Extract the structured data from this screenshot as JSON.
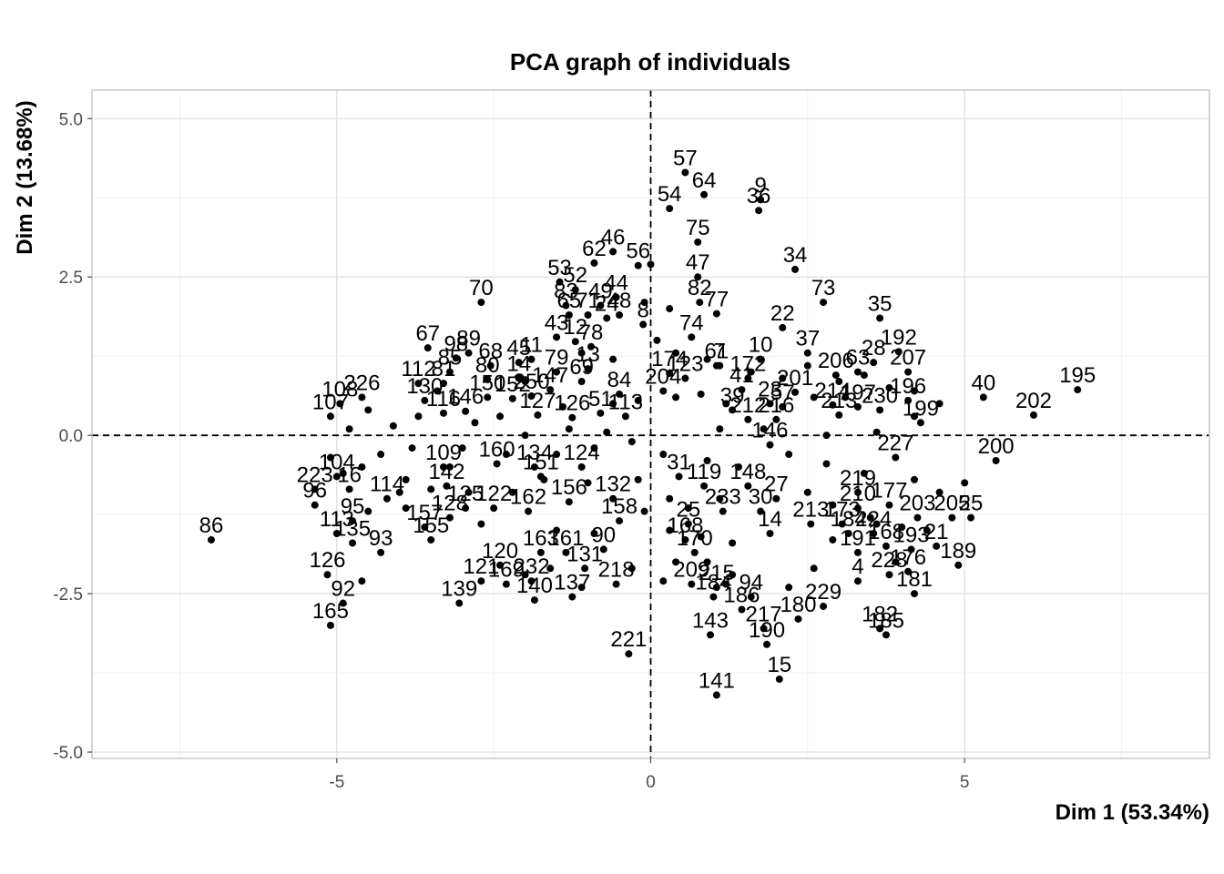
{
  "chart_data": {
    "type": "scatter",
    "title": "PCA graph of individuals",
    "xlabel": "Dim 1 (53.34%)",
    "ylabel": "Dim 2 (13.68%)",
    "xlim": [
      -8.9,
      8.9
    ],
    "ylim": [
      -5.1,
      5.45
    ],
    "xticks": [
      -5,
      0,
      5
    ],
    "xtick_labels": [
      "-5",
      "0",
      "5"
    ],
    "yticks": [
      -5,
      -2.5,
      0,
      2.5,
      5
    ],
    "ytick_labels": [
      "-5.0",
      "-2.5",
      "0.0",
      "2.5",
      "5.0"
    ],
    "grid": true,
    "reference_lines": {
      "x": 0,
      "y": 0,
      "style": "dashed"
    },
    "points": [
      {
        "label": "57",
        "x": 0.55,
        "y": 4.15
      },
      {
        "label": "64",
        "x": 0.85,
        "y": 3.8
      },
      {
        "label": "54",
        "x": 0.3,
        "y": 3.58
      },
      {
        "label": "9",
        "x": 1.75,
        "y": 3.72
      },
      {
        "label": "36",
        "x": 1.72,
        "y": 3.55
      },
      {
        "label": "75",
        "x": 0.75,
        "y": 3.05
      },
      {
        "label": "46",
        "x": -0.6,
        "y": 2.9
      },
      {
        "label": "62",
        "x": -0.9,
        "y": 2.72
      },
      {
        "label": "56",
        "x": -0.2,
        "y": 2.68
      },
      {
        "label": "47",
        "x": 0.75,
        "y": 2.5
      },
      {
        "label": "34",
        "x": 2.3,
        "y": 2.62
      },
      {
        "label": "44",
        "x": -0.55,
        "y": 2.18
      },
      {
        "label": "53",
        "x": -1.45,
        "y": 2.42
      },
      {
        "label": "52",
        "x": -1.2,
        "y": 2.3
      },
      {
        "label": "83",
        "x": -1.35,
        "y": 2.05
      },
      {
        "label": "49",
        "x": -0.8,
        "y": 2.05
      },
      {
        "label": "82",
        "x": 0.78,
        "y": 2.1
      },
      {
        "label": "73",
        "x": 2.75,
        "y": 2.1
      },
      {
        "label": "70",
        "x": -2.7,
        "y": 2.1
      },
      {
        "label": "77",
        "x": 1.05,
        "y": 1.92
      },
      {
        "label": "65",
        "x": -1.3,
        "y": 1.9
      },
      {
        "label": "71",
        "x": -1.0,
        "y": 1.9
      },
      {
        "label": "24",
        "x": -0.7,
        "y": 1.85
      },
      {
        "label": "48",
        "x": -0.5,
        "y": 1.9
      },
      {
        "label": "8",
        "x": -0.12,
        "y": 1.75
      },
      {
        "label": "22",
        "x": 2.1,
        "y": 1.7
      },
      {
        "label": "35",
        "x": 3.65,
        "y": 1.85
      },
      {
        "label": "74",
        "x": 0.65,
        "y": 1.55
      },
      {
        "label": "43",
        "x": -1.5,
        "y": 1.55
      },
      {
        "label": "12",
        "x": -1.2,
        "y": 1.48
      },
      {
        "label": "78",
        "x": -0.95,
        "y": 1.4
      },
      {
        "label": "67",
        "x": -3.55,
        "y": 1.38
      },
      {
        "label": "98",
        "x": -3.1,
        "y": 1.22
      },
      {
        "label": "89",
        "x": -2.9,
        "y": 1.3
      },
      {
        "label": "37",
        "x": 2.5,
        "y": 1.3
      },
      {
        "label": "192",
        "x": 3.95,
        "y": 1.32
      },
      {
        "label": "68",
        "x": -2.55,
        "y": 1.1
      },
      {
        "label": "45",
        "x": -2.1,
        "y": 1.15
      },
      {
        "label": "11",
        "x": -1.9,
        "y": 1.2
      },
      {
        "label": "10",
        "x": 1.75,
        "y": 1.2
      },
      {
        "label": "61",
        "x": 1.05,
        "y": 1.1
      },
      {
        "label": "7",
        "x": 1.1,
        "y": 1.1
      },
      {
        "label": "28",
        "x": 3.55,
        "y": 1.15
      },
      {
        "label": "63",
        "x": 3.3,
        "y": 1.0
      },
      {
        "label": "207",
        "x": 4.1,
        "y": 1.0
      },
      {
        "label": "206",
        "x": 2.95,
        "y": 0.95
      },
      {
        "label": "85",
        "x": -3.2,
        "y": 1.0
      },
      {
        "label": "79",
        "x": -1.5,
        "y": 1.0
      },
      {
        "label": "13",
        "x": -1.0,
        "y": 1.05
      },
      {
        "label": "172",
        "x": 1.55,
        "y": 0.9
      },
      {
        "label": "174",
        "x": 0.3,
        "y": 0.98
      },
      {
        "label": "80",
        "x": -2.6,
        "y": 0.88
      },
      {
        "label": "14",
        "x": -2.1,
        "y": 0.9
      },
      {
        "label": "69",
        "x": -1.1,
        "y": 0.85
      },
      {
        "label": "112",
        "x": -3.7,
        "y": 0.82
      },
      {
        "label": "81",
        "x": -3.3,
        "y": 0.82
      },
      {
        "label": "123",
        "x": 0.55,
        "y": 0.9
      },
      {
        "label": "41",
        "x": 1.45,
        "y": 0.72
      },
      {
        "label": "201",
        "x": 2.3,
        "y": 0.68
      },
      {
        "label": "204",
        "x": 0.2,
        "y": 0.7
      },
      {
        "label": "147",
        "x": -1.6,
        "y": 0.72
      },
      {
        "label": "84",
        "x": -0.5,
        "y": 0.65
      },
      {
        "label": "196",
        "x": 4.1,
        "y": 0.55
      },
      {
        "label": "40",
        "x": 5.3,
        "y": 0.6
      },
      {
        "label": "195",
        "x": 6.8,
        "y": 0.72
      },
      {
        "label": "202",
        "x": 6.1,
        "y": 0.32
      },
      {
        "label": "226",
        "x": -4.6,
        "y": 0.6
      },
      {
        "label": "108",
        "x": -4.95,
        "y": 0.5
      },
      {
        "label": "130",
        "x": -3.6,
        "y": 0.55
      },
      {
        "label": "150",
        "x": -2.6,
        "y": 0.6
      },
      {
        "label": "152",
        "x": -2.2,
        "y": 0.58
      },
      {
        "label": "250",
        "x": -1.9,
        "y": 0.62
      },
      {
        "label": "39",
        "x": 1.3,
        "y": 0.4
      },
      {
        "label": "23",
        "x": 1.9,
        "y": 0.5
      },
      {
        "label": "57b",
        "x": 2.1,
        "y": 0.45
      },
      {
        "label": "214",
        "x": 2.9,
        "y": 0.48
      },
      {
        "label": "197",
        "x": 3.3,
        "y": 0.45
      },
      {
        "label": "230",
        "x": 3.65,
        "y": 0.4
      },
      {
        "label": "107",
        "x": -5.1,
        "y": 0.3
      },
      {
        "label": "127",
        "x": -1.8,
        "y": 0.32
      },
      {
        "label": "126b",
        "x": -1.25,
        "y": 0.28
      },
      {
        "label": "51",
        "x": -0.8,
        "y": 0.35
      },
      {
        "label": "113",
        "x": -0.4,
        "y": 0.3
      },
      {
        "label": "116",
        "x": -3.3,
        "y": 0.35
      },
      {
        "label": "146b",
        "x": -2.95,
        "y": 0.38
      },
      {
        "label": "212",
        "x": 1.55,
        "y": 0.25
      },
      {
        "label": "216",
        "x": 2.0,
        "y": 0.25
      },
      {
        "label": "213",
        "x": 3.0,
        "y": 0.32
      },
      {
        "label": "199",
        "x": 4.3,
        "y": 0.2
      },
      {
        "label": "146",
        "x": 1.9,
        "y": -0.15
      },
      {
        "label": "227",
        "x": 3.9,
        "y": -0.35
      },
      {
        "label": "200",
        "x": 5.5,
        "y": -0.4
      },
      {
        "label": "160",
        "x": -2.45,
        "y": -0.45
      },
      {
        "label": "134",
        "x": -1.85,
        "y": -0.5
      },
      {
        "label": "124",
        "x": -1.1,
        "y": -0.5
      },
      {
        "label": "151",
        "x": -1.75,
        "y": -0.65
      },
      {
        "label": "109",
        "x": -3.3,
        "y": -0.5
      },
      {
        "label": "104",
        "x": -5.0,
        "y": -0.65
      },
      {
        "label": "31",
        "x": 0.45,
        "y": -0.65
      },
      {
        "label": "148",
        "x": 1.55,
        "y": -0.8
      },
      {
        "label": "119",
        "x": 0.85,
        "y": -0.8
      },
      {
        "label": "223",
        "x": -5.35,
        "y": -0.85
      },
      {
        "label": "16",
        "x": -4.8,
        "y": -0.85
      },
      {
        "label": "142",
        "x": -3.25,
        "y": -0.8
      },
      {
        "label": "156",
        "x": -1.3,
        "y": -1.05
      },
      {
        "label": "132",
        "x": -0.6,
        "y": -1.0
      },
      {
        "label": "27",
        "x": 2.0,
        "y": -1.0
      },
      {
        "label": "219",
        "x": 3.3,
        "y": -0.9
      },
      {
        "label": "233",
        "x": 1.15,
        "y": -1.2
      },
      {
        "label": "30",
        "x": 1.75,
        "y": -1.2
      },
      {
        "label": "96",
        "x": -5.35,
        "y": -1.1
      },
      {
        "label": "114",
        "x": -4.2,
        "y": -1.0
      },
      {
        "label": "125",
        "x": -2.95,
        "y": -1.15
      },
      {
        "label": "122",
        "x": -2.5,
        "y": -1.15
      },
      {
        "label": "162",
        "x": -1.95,
        "y": -1.2
      },
      {
        "label": "210",
        "x": 3.3,
        "y": -1.15
      },
      {
        "label": "177",
        "x": 3.8,
        "y": -1.1
      },
      {
        "label": "203",
        "x": 4.25,
        "y": -1.3
      },
      {
        "label": "205",
        "x": 4.8,
        "y": -1.3
      },
      {
        "label": "25",
        "x": 5.1,
        "y": -1.3
      },
      {
        "label": "213b",
        "x": 2.55,
        "y": -1.4
      },
      {
        "label": "173",
        "x": 3.05,
        "y": -1.4
      },
      {
        "label": "95",
        "x": -4.75,
        "y": -1.35
      },
      {
        "label": "157",
        "x": -3.6,
        "y": -1.45
      },
      {
        "label": "128",
        "x": -3.2,
        "y": -1.3
      },
      {
        "label": "158",
        "x": -0.5,
        "y": -1.35
      },
      {
        "label": "25b",
        "x": 0.6,
        "y": -1.4
      },
      {
        "label": "14b",
        "x": 1.9,
        "y": -1.55
      },
      {
        "label": "184",
        "x": 3.15,
        "y": -1.55
      },
      {
        "label": "224",
        "x": 3.55,
        "y": -1.55
      },
      {
        "label": "113b",
        "x": -5.0,
        "y": -1.55
      },
      {
        "label": "135",
        "x": -4.75,
        "y": -1.7
      },
      {
        "label": "155",
        "x": -3.5,
        "y": -1.65
      },
      {
        "label": "93",
        "x": -4.3,
        "y": -1.85
      },
      {
        "label": "163",
        "x": -1.75,
        "y": -1.85
      },
      {
        "label": "161",
        "x": -1.35,
        "y": -1.85
      },
      {
        "label": "90",
        "x": -0.75,
        "y": -1.8
      },
      {
        "label": "168",
        "x": 0.55,
        "y": -1.65
      },
      {
        "label": "170",
        "x": 0.7,
        "y": -1.85
      },
      {
        "label": "191",
        "x": 3.3,
        "y": -1.85
      },
      {
        "label": "168b",
        "x": 3.75,
        "y": -1.75
      },
      {
        "label": "193",
        "x": 4.15,
        "y": -1.8
      },
      {
        "label": "21",
        "x": 4.55,
        "y": -1.75
      },
      {
        "label": "120",
        "x": -2.4,
        "y": -2.05
      },
      {
        "label": "131",
        "x": -1.05,
        "y": -2.1
      },
      {
        "label": "189",
        "x": 4.9,
        "y": -2.05
      },
      {
        "label": "228",
        "x": 3.8,
        "y": -2.2
      },
      {
        "label": "176",
        "x": 4.1,
        "y": -2.15
      },
      {
        "label": "126",
        "x": -5.15,
        "y": -2.2
      },
      {
        "label": "121",
        "x": -2.7,
        "y": -2.3
      },
      {
        "label": "232",
        "x": -1.9,
        "y": -2.3
      },
      {
        "label": "169",
        "x": -2.3,
        "y": -2.35
      },
      {
        "label": "218",
        "x": -0.55,
        "y": -2.35
      },
      {
        "label": "209",
        "x": 0.65,
        "y": -2.35
      },
      {
        "label": "215",
        "x": 1.05,
        "y": -2.4
      },
      {
        "label": "4",
        "x": 3.3,
        "y": -2.3
      },
      {
        "label": "181",
        "x": 4.2,
        "y": -2.5
      },
      {
        "label": "137",
        "x": -1.25,
        "y": -2.55
      },
      {
        "label": "140",
        "x": -1.85,
        "y": -2.6
      },
      {
        "label": "184b",
        "x": 1.0,
        "y": -2.55
      },
      {
        "label": "94",
        "x": 1.6,
        "y": -2.55
      },
      {
        "label": "186",
        "x": 1.45,
        "y": -2.75
      },
      {
        "label": "229",
        "x": 2.75,
        "y": -2.7
      },
      {
        "label": "139",
        "x": -3.05,
        "y": -2.65
      },
      {
        "label": "92",
        "x": -4.9,
        "y": -2.65
      },
      {
        "label": "180",
        "x": 2.35,
        "y": -2.9
      },
      {
        "label": "217",
        "x": 1.8,
        "y": -3.05
      },
      {
        "label": "165",
        "x": -5.1,
        "y": -3.0
      },
      {
        "label": "182",
        "x": 3.65,
        "y": -3.05
      },
      {
        "label": "185",
        "x": 3.75,
        "y": -3.15
      },
      {
        "label": "143",
        "x": 0.95,
        "y": -3.15
      },
      {
        "label": "190",
        "x": 1.85,
        "y": -3.3
      },
      {
        "label": "221",
        "x": -0.35,
        "y": -3.45
      },
      {
        "label": "15",
        "x": 2.05,
        "y": -3.85
      },
      {
        "label": "141",
        "x": 1.05,
        "y": -4.1
      },
      {
        "label": "86",
        "x": -7.0,
        "y": -1.65
      }
    ],
    "extra_points": [
      [
        0.0,
        2.7
      ],
      [
        -0.1,
        2.1
      ],
      [
        0.1,
        1.5
      ],
      [
        0.4,
        1.3
      ],
      [
        0.9,
        1.2
      ],
      [
        1.6,
        1.0
      ],
      [
        2.1,
        0.9
      ],
      [
        2.5,
        1.1
      ],
      [
        3.0,
        0.85
      ],
      [
        3.4,
        0.95
      ],
      [
        3.8,
        0.75
      ],
      [
        4.2,
        0.7
      ],
      [
        4.6,
        0.5
      ],
      [
        3.1,
        0.6
      ],
      [
        2.6,
        0.6
      ],
      [
        1.2,
        0.5
      ],
      [
        0.8,
        0.65
      ],
      [
        -0.2,
        0.55
      ],
      [
        -0.6,
        0.5
      ],
      [
        -1.4,
        0.45
      ],
      [
        -2.4,
        0.3
      ],
      [
        -2.8,
        0.2
      ],
      [
        -3.7,
        0.3
      ],
      [
        -4.1,
        0.15
      ],
      [
        -4.5,
        0.4
      ],
      [
        -4.8,
        0.1
      ],
      [
        -3.8,
        -0.2
      ],
      [
        -4.3,
        -0.3
      ],
      [
        -3.0,
        -0.2
      ],
      [
        -2.3,
        -0.3
      ],
      [
        -1.5,
        -0.3
      ],
      [
        -0.9,
        -0.2
      ],
      [
        -0.3,
        -0.1
      ],
      [
        0.2,
        -0.3
      ],
      [
        0.9,
        -0.4
      ],
      [
        1.4,
        -0.5
      ],
      [
        2.2,
        -0.3
      ],
      [
        2.8,
        -0.45
      ],
      [
        3.4,
        -0.6
      ],
      [
        4.2,
        -0.7
      ],
      [
        4.6,
        -0.9
      ],
      [
        5.0,
        -0.75
      ],
      [
        -4.6,
        -0.5
      ],
      [
        -3.9,
        -0.7
      ],
      [
        -2.9,
        -0.9
      ],
      [
        -2.2,
        -0.9
      ],
      [
        -1.0,
        -0.75
      ],
      [
        -0.2,
        -0.7
      ],
      [
        0.3,
        -1.0
      ],
      [
        0.6,
        -1.15
      ],
      [
        1.1,
        -1.0
      ],
      [
        2.5,
        -0.9
      ],
      [
        2.9,
        -1.1
      ],
      [
        3.5,
        -1.3
      ],
      [
        4.0,
        -1.45
      ],
      [
        4.4,
        -1.5
      ],
      [
        -4.5,
        -1.2
      ],
      [
        -3.9,
        -1.15
      ],
      [
        -2.7,
        -1.4
      ],
      [
        -0.1,
        -1.2
      ],
      [
        0.3,
        -1.5
      ],
      [
        0.8,
        -1.6
      ],
      [
        1.3,
        -1.7
      ],
      [
        2.9,
        -1.65
      ],
      [
        3.6,
        -1.4
      ],
      [
        -1.5,
        -1.5
      ],
      [
        -0.9,
        -1.55
      ],
      [
        0.4,
        -2.0
      ],
      [
        0.9,
        -2.0
      ],
      [
        1.3,
        -2.2
      ],
      [
        2.6,
        -2.1
      ],
      [
        3.9,
        -2.0
      ],
      [
        -0.3,
        -2.1
      ],
      [
        -1.6,
        -2.1
      ],
      [
        -4.6,
        -2.3
      ],
      [
        -2.0,
        -2.2
      ],
      [
        -1.1,
        -2.4
      ],
      [
        0.2,
        -2.3
      ],
      [
        1.2,
        -2.35
      ],
      [
        2.2,
        -2.4
      ],
      [
        -3.2,
        -0.5
      ],
      [
        -3.5,
        -0.85
      ],
      [
        -4.0,
        -0.9
      ],
      [
        -5.1,
        -0.35
      ],
      [
        -4.9,
        -0.6
      ],
      [
        -1.3,
        0.1
      ],
      [
        -0.7,
        0.05
      ],
      [
        1.1,
        0.1
      ],
      [
        1.8,
        0.1
      ],
      [
        2.8,
        0.0
      ],
      [
        3.6,
        0.05
      ],
      [
        4.2,
        0.3
      ],
      [
        -2.0,
        0.85
      ],
      [
        -1.1,
        1.3
      ],
      [
        -0.6,
        1.2
      ],
      [
        0.3,
        2.0
      ],
      [
        0.4,
        0.6
      ],
      [
        -3.4,
        0.7
      ],
      [
        -2.0,
        0.0
      ],
      [
        -1.7,
        -0.7
      ]
    ]
  }
}
